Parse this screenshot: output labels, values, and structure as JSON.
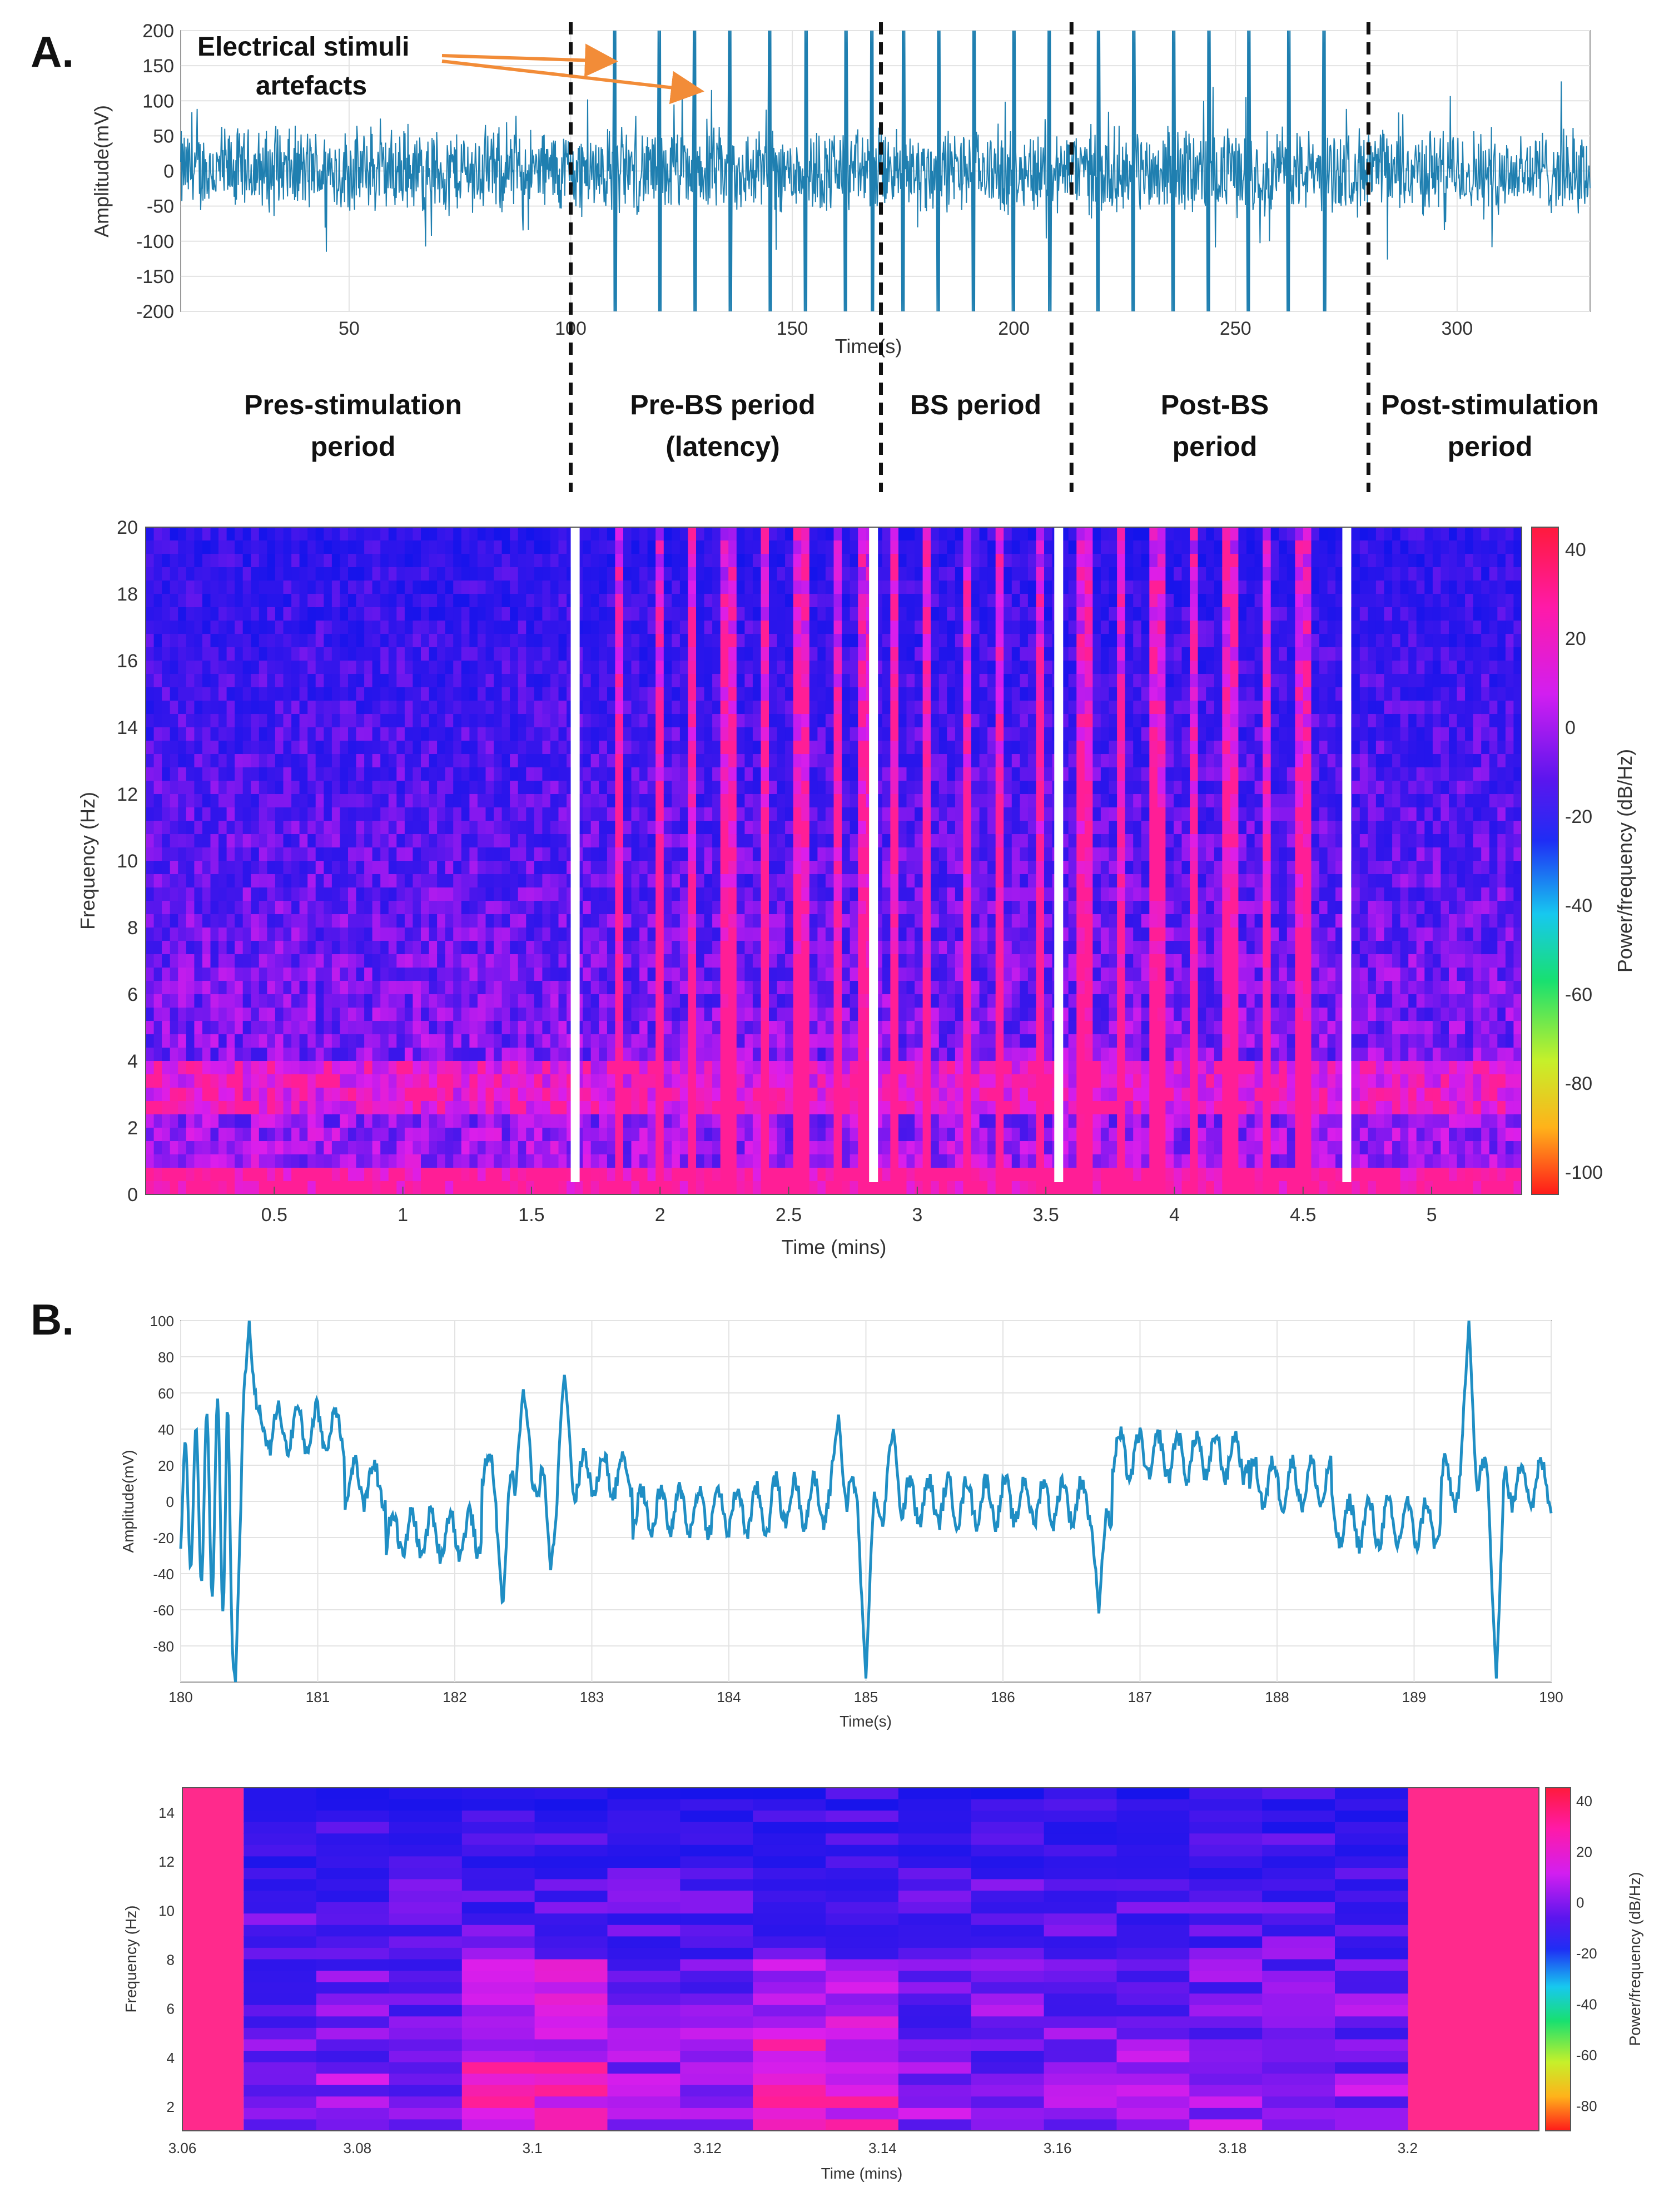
{
  "panel_labels": {
    "a": "A.",
    "b": "B."
  },
  "annotation": {
    "line1": "Electrical stimuli",
    "line2": "artefacts",
    "color": "#f28c38"
  },
  "periods": [
    {
      "line1": "Pres-stimulation",
      "line2": "period"
    },
    {
      "line1": "Pre-BS period",
      "line2": "(latency)"
    },
    {
      "line1": "BS period",
      "line2": ""
    },
    {
      "line1": "Post-BS",
      "line2": "period"
    },
    {
      "line1": "Post-stimulation",
      "line2": "period"
    }
  ],
  "colors": {
    "signal": "#1f7fb0",
    "grid": "#e3e3e3",
    "divider": "#111111"
  },
  "chart_data": [
    {
      "id": "A-signal",
      "type": "line",
      "title": "",
      "xlabel": "Time(s)",
      "ylabel": "Amplitude(mV)",
      "xlim": [
        12,
        330
      ],
      "ylim": [
        -200,
        200
      ],
      "xticks": [
        50,
        100,
        150,
        200,
        250,
        300
      ],
      "yticks": [
        -200,
        -150,
        -100,
        -50,
        0,
        50,
        100,
        150,
        200
      ],
      "period_boundaries_s": [
        100,
        170,
        213,
        280
      ],
      "stimulus_artefact_times_s": [
        110,
        120,
        128,
        136,
        145,
        153,
        162,
        168,
        175,
        183,
        191,
        200,
        208,
        219,
        227,
        236,
        244,
        253,
        262,
        270
      ],
      "baseline_amplitude_mV": 50,
      "artefact_peak_mV": 200
    },
    {
      "id": "A-spectrogram",
      "type": "heatmap",
      "xlabel": "Time (mins)",
      "ylabel": "Frequency (Hz)",
      "xlim": [
        0,
        5.35
      ],
      "ylim": [
        0,
        20
      ],
      "xticks": [
        0.5,
        1,
        1.5,
        2,
        2.5,
        3,
        3.5,
        4,
        4.5,
        5
      ],
      "xtick_labels": [
        "0.5",
        "1",
        "1.5",
        "2",
        "2.5",
        "3",
        "3.5",
        "4",
        "4.5",
        "5"
      ],
      "yticks": [
        0,
        2,
        4,
        6,
        8,
        10,
        12,
        14,
        16,
        18,
        20
      ],
      "gap_times_min": [
        1.67,
        2.83,
        3.55,
        4.67
      ],
      "colorbar_label": "Power/frequency (dB/Hz)",
      "colorbar_ticks": [
        40,
        20,
        0,
        -20,
        -40,
        -60,
        -80,
        -100
      ],
      "colorbar_range": [
        -105,
        45
      ]
    },
    {
      "id": "B-signal",
      "type": "line",
      "xlabel": "Time(s)",
      "ylabel": "Amplitude(mV)",
      "xlim": [
        180,
        190
      ],
      "ylim": [
        -100,
        100
      ],
      "xticks": [
        180,
        181,
        182,
        183,
        184,
        185,
        186,
        187,
        188,
        189,
        190
      ],
      "yticks": [
        -80,
        -60,
        -40,
        -20,
        0,
        20,
        40,
        60,
        80,
        100
      ],
      "events": [
        {
          "t": 180.4,
          "amp": -100
        },
        {
          "t": 180.5,
          "amp": 100
        },
        {
          "t": 182.35,
          "amp": -60
        },
        {
          "t": 182.5,
          "amp": 62
        },
        {
          "t": 182.8,
          "amp": 70
        },
        {
          "t": 182.7,
          "amp": -38
        },
        {
          "t": 184.8,
          "amp": 48
        },
        {
          "t": 185.0,
          "amp": -98
        },
        {
          "t": 185.2,
          "amp": 40
        },
        {
          "t": 186.7,
          "amp": -62
        },
        {
          "t": 189.4,
          "amp": 100
        },
        {
          "t": 189.6,
          "amp": -98
        }
      ]
    },
    {
      "id": "B-spectrogram",
      "type": "heatmap",
      "xlabel": "Time (mins)",
      "ylabel": "Frequency (Hz)",
      "xlim": [
        3.06,
        3.215
      ],
      "ylim": [
        1,
        15
      ],
      "xticks": [
        3.06,
        3.08,
        3.1,
        3.12,
        3.14,
        3.16,
        3.18,
        3.2
      ],
      "xtick_labels": [
        "3.06",
        "3.08",
        "3.1",
        "3.12",
        "3.14",
        "3.16",
        "3.18",
        "3.2"
      ],
      "yticks": [
        2,
        4,
        6,
        8,
        10,
        12,
        14
      ],
      "data_start_min": 3.067,
      "data_end_min": 3.2,
      "colorbar_label": "Power/frequency (dB/Hz)",
      "colorbar_ticks": [
        40,
        20,
        0,
        -20,
        -40,
        -60,
        -80
      ],
      "colorbar_range": [
        -90,
        45
      ]
    }
  ]
}
